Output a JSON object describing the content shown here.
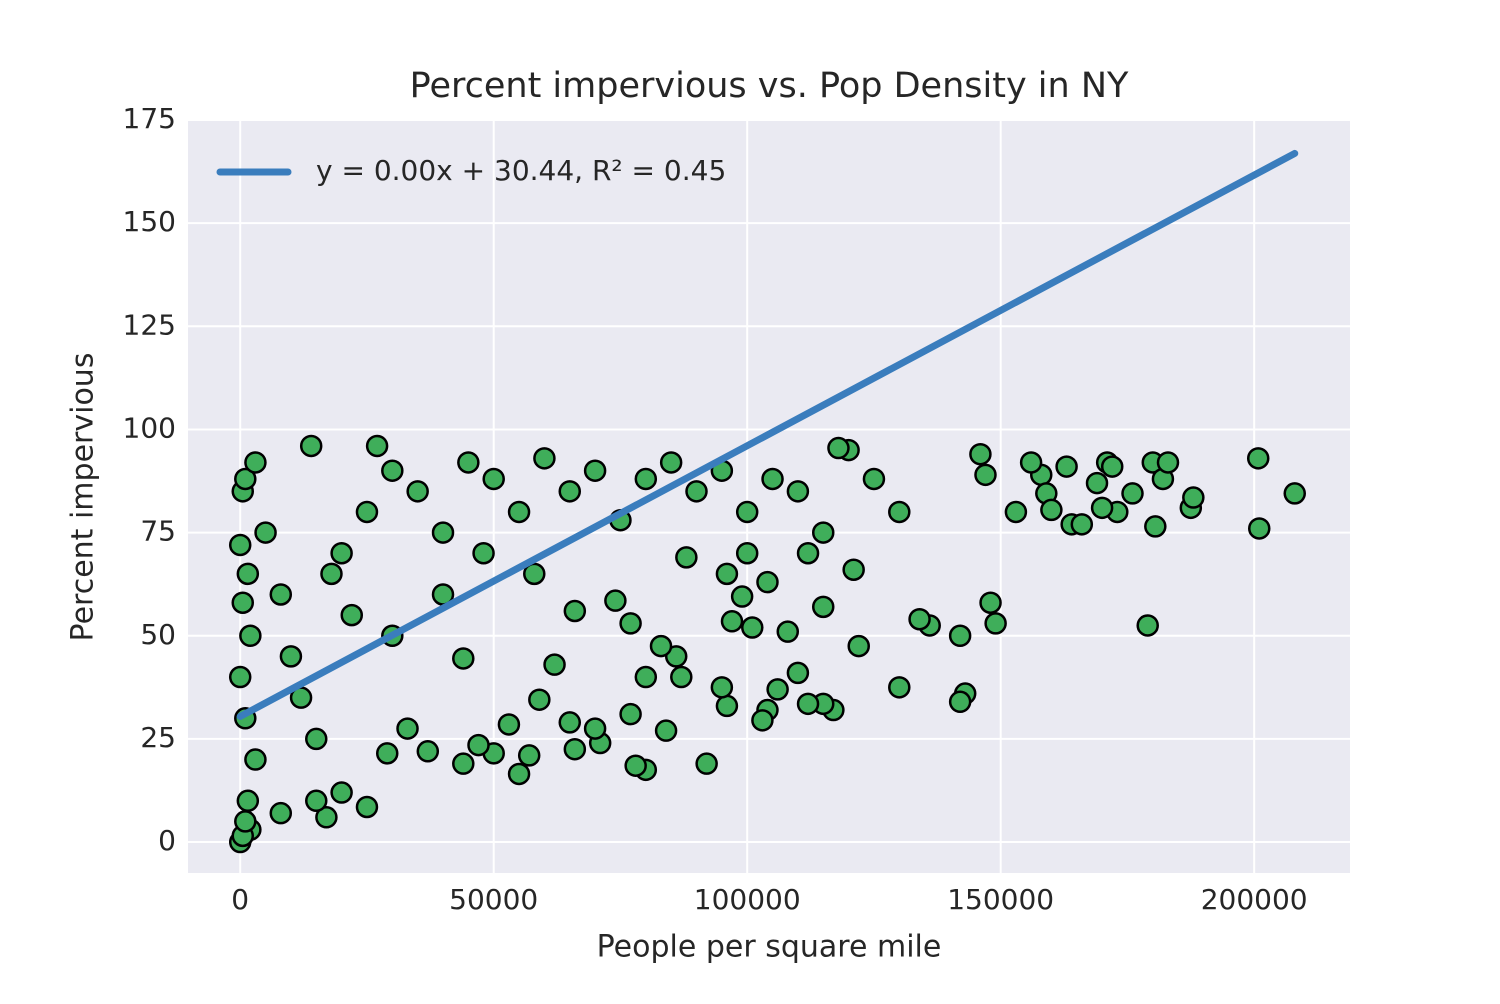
{
  "chart_data": {
    "type": "scatter",
    "title": "Percent impervious vs. Pop Density in NY",
    "xlabel": "People per square mile",
    "ylabel": "Percent impervious",
    "xlim": [
      -10300,
      218900
    ],
    "ylim": [
      -7.5,
      175
    ],
    "xticks": [
      0,
      50000,
      100000,
      150000,
      200000
    ],
    "yticks": [
      0,
      25,
      50,
      75,
      100,
      125,
      150,
      175
    ],
    "grid": true,
    "legend": "upper left",
    "series": [
      {
        "type": "scatter",
        "color": "#3fae5a",
        "edgecolor": "#000000",
        "x": [
          200800,
          201000,
          208000,
          179000,
          180000,
          180500,
          182000,
          183000,
          187500,
          188000,
          173000,
          176000,
          171000,
          172000,
          169000,
          170000,
          164000,
          166000,
          163000,
          158000,
          159000,
          160000,
          156000,
          153000,
          148000,
          149000,
          146000,
          147000,
          143000,
          142000,
          142000,
          136000,
          134000,
          130000,
          122000,
          117000,
          115000,
          115000,
          112000,
          108000,
          110000,
          106000,
          104000,
          103000,
          101000,
          99000,
          97000,
          96000,
          95000,
          92000,
          87000,
          86000,
          83000,
          84000,
          80000,
          80000,
          78000,
          77000,
          77000,
          74000,
          71000,
          70000,
          66000,
          65000,
          62000,
          59000,
          57000,
          55000,
          53000,
          50000,
          47000,
          44000,
          44000,
          37000,
          33000,
          29000,
          25000,
          20000,
          17000,
          15000,
          8000,
          2000,
          0,
          500,
          1000,
          1500,
          3000,
          1000,
          0,
          2000,
          500,
          1500,
          0,
          500,
          1000,
          3000,
          5000,
          8000,
          10000,
          12000,
          15000,
          20000,
          25000,
          30000,
          35000,
          40000,
          45000,
          50000,
          55000,
          60000,
          65000,
          70000,
          75000,
          80000,
          85000,
          90000,
          95000,
          100000,
          105000,
          110000,
          115000,
          120000,
          125000,
          130000,
          118000,
          121000,
          27000,
          14000,
          18000,
          22000,
          30000,
          40000,
          48000,
          58000,
          66000,
          88000,
          96000,
          100000,
          104000,
          112000
        ],
        "y": [
          93,
          76,
          84.5,
          52.5,
          92,
          76.5,
          88,
          92,
          81,
          83.5,
          80,
          84.5,
          92,
          91,
          87,
          81,
          77,
          77,
          91,
          89,
          84.5,
          80.5,
          92,
          80,
          58,
          53,
          94,
          89,
          36,
          34,
          50,
          52.5,
          54,
          37.5,
          47.5,
          32,
          57,
          33.5,
          33.5,
          51,
          41,
          37,
          32,
          29.5,
          52,
          59.5,
          53.5,
          33,
          37.5,
          19,
          40,
          45,
          47.5,
          27,
          17.5,
          40,
          18.5,
          31,
          53,
          58.5,
          24,
          27.5,
          22.5,
          29,
          43,
          34.5,
          21,
          16.5,
          28.5,
          21.5,
          23.5,
          19,
          44.5,
          22,
          27.5,
          21.5,
          8.5,
          12,
          6,
          10,
          7,
          3,
          0,
          1.5,
          5,
          10,
          20,
          30,
          40,
          50,
          58,
          65,
          72,
          85,
          88,
          92,
          75,
          60,
          45,
          35,
          25,
          70,
          80,
          90,
          85,
          75,
          92,
          88,
          80,
          93,
          85,
          90,
          78,
          88,
          92,
          85,
          90,
          80,
          88,
          85,
          75,
          95,
          88,
          80,
          95.5,
          66,
          96,
          96,
          65,
          55,
          50,
          60,
          70,
          65,
          56,
          69,
          65,
          70,
          63,
          70
        ]
      },
      {
        "type": "line",
        "name": "y = 0.00x + 30.44, R² = 0.45",
        "color": "#3a7dbd",
        "x": [
          0,
          208000
        ],
        "y": [
          30.44,
          166.9
        ]
      }
    ]
  }
}
